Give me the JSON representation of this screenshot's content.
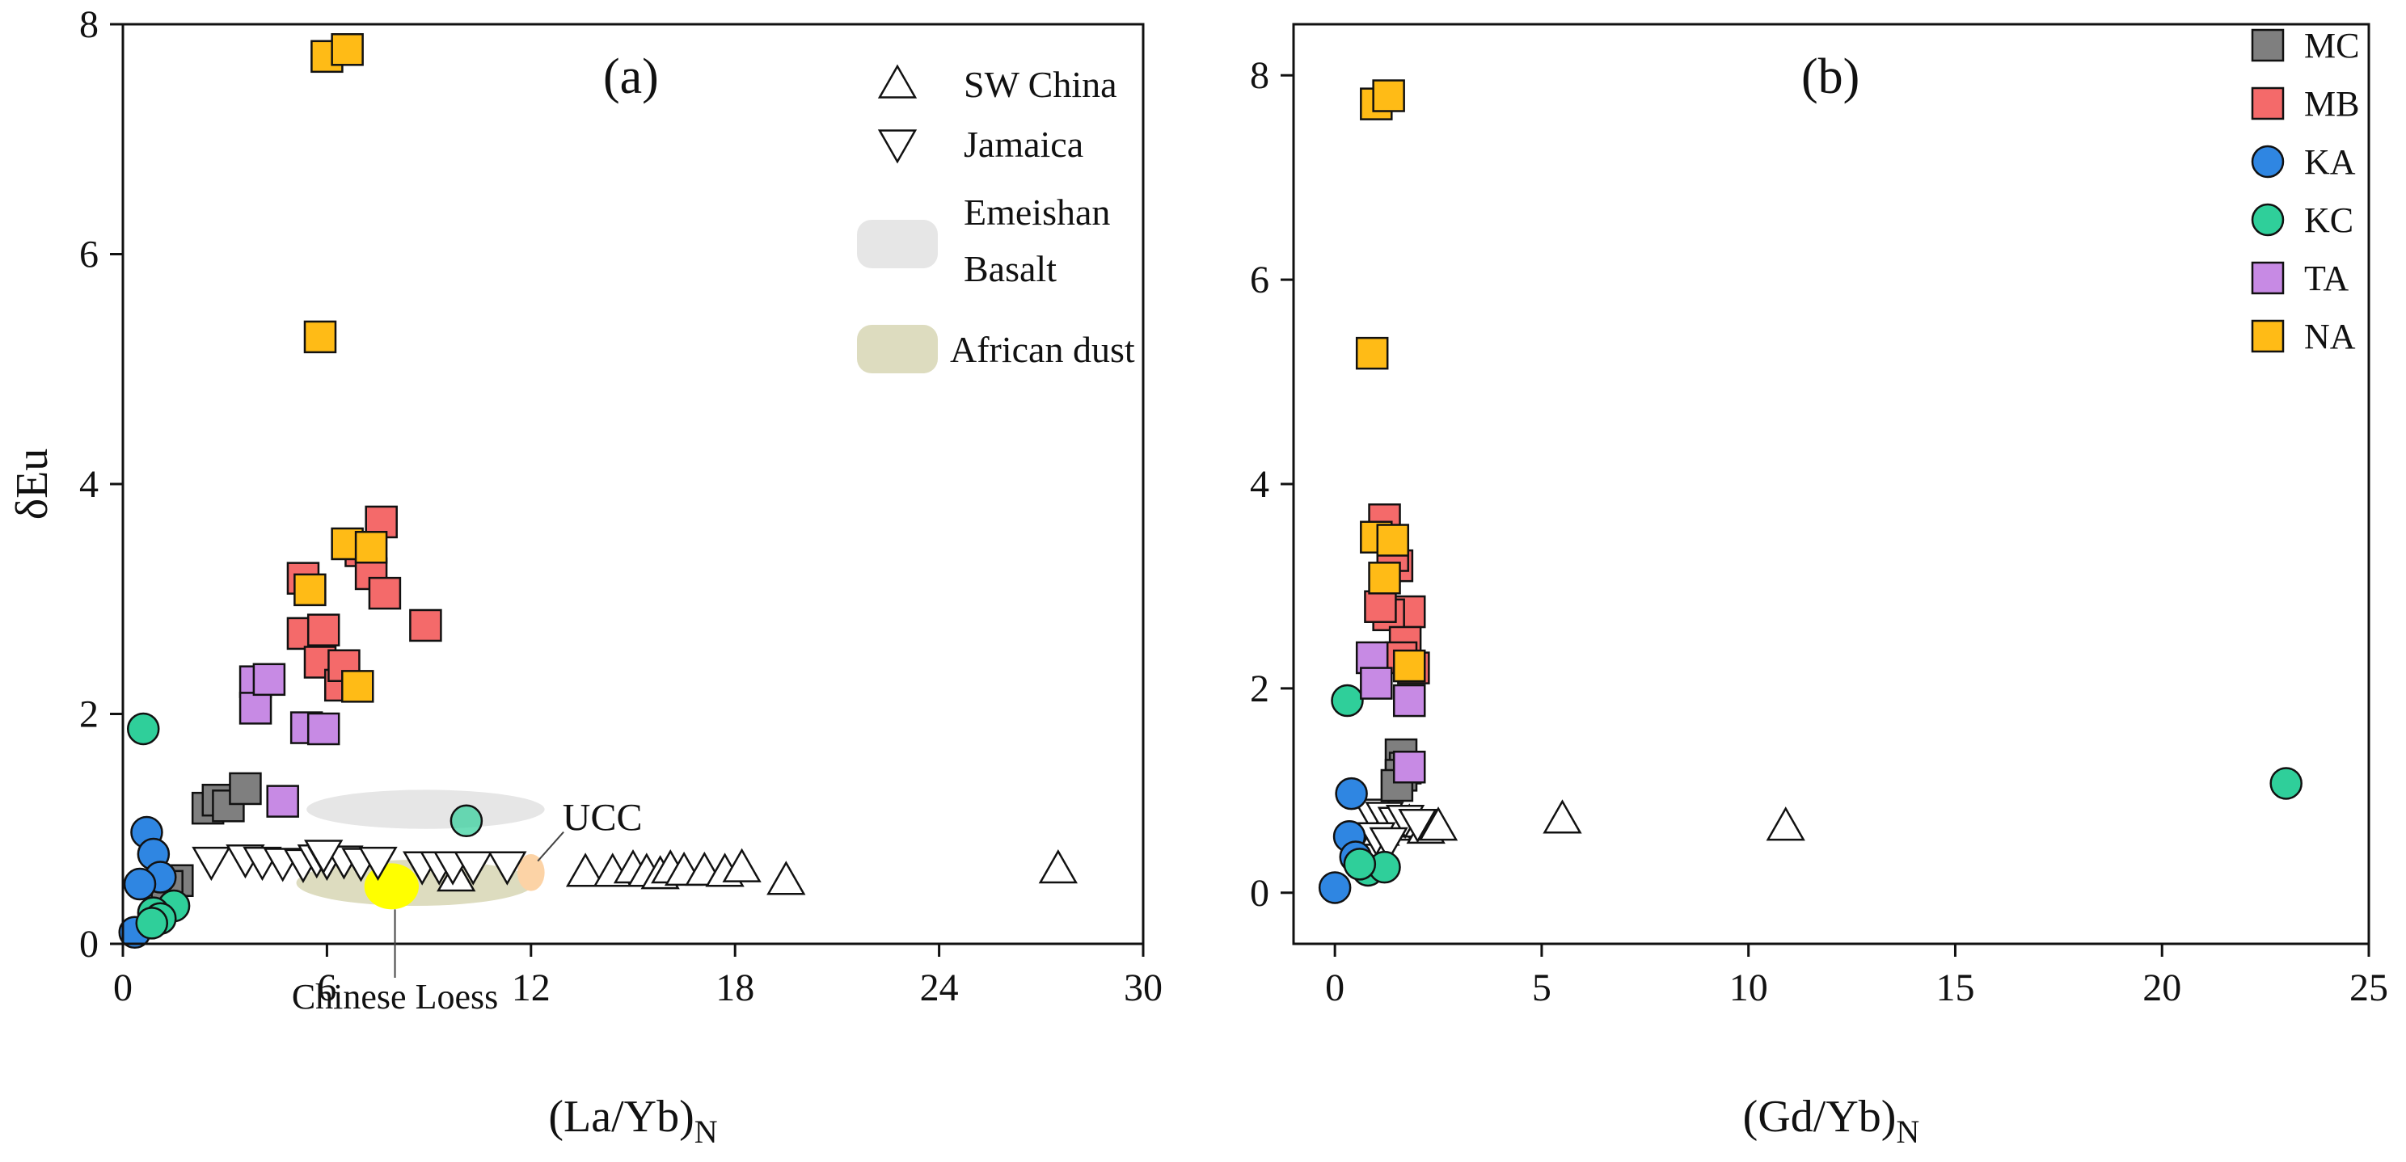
{
  "chart_data": [
    {
      "type": "scatter",
      "panel_label": "(a)",
      "ylabel": "δEu",
      "xlabel": "(La/Yb)",
      "xlabel_sub": "N",
      "xlim": [
        0,
        30
      ],
      "ylim": [
        0,
        8
      ],
      "xticks": [
        0,
        6,
        12,
        18,
        24,
        30
      ],
      "yticks": [
        0,
        2,
        4,
        6,
        8
      ],
      "legend": [
        {
          "name": "SW China",
          "marker": "triangle-up",
          "color": "#ffffff"
        },
        {
          "name": "Jamaica",
          "marker": "triangle-down",
          "color": "#ffffff"
        },
        {
          "name": "Emeishan",
          "name2": "Basalt",
          "marker": "region",
          "color": "#e6e6e6"
        },
        {
          "name": "African dust",
          "marker": "region",
          "color": "#dddcbf"
        }
      ],
      "regions": [
        {
          "name": "Emeishan Basalt",
          "cx": 8.9,
          "cy": 1.17,
          "rx": 3.5,
          "ry": 0.17,
          "color": "#e6e6e6"
        },
        {
          "name": "African dust",
          "cx": 8.6,
          "cy": 0.53,
          "rx": 3.5,
          "ry": 0.2,
          "color": "#dddcbf"
        },
        {
          "name": "Chinese Loess",
          "cx": 7.9,
          "cy": 0.5,
          "rx": 0.8,
          "ry": 0.2,
          "color": "#ffff00"
        },
        {
          "name": "UCC",
          "cx": 12.0,
          "cy": 0.62,
          "rx": 0.4,
          "ry": 0.16,
          "color": "#fcd3a6"
        }
      ],
      "annotations": [
        {
          "text": "UCC",
          "x": 14.1,
          "y": 1.1,
          "target_x": 12.2,
          "target_y": 0.72
        },
        {
          "text": "Chinese Loess",
          "x": 8.0,
          "y": -0.4,
          "target_x": 8.0,
          "target_y": 0.3
        }
      ],
      "series": [
        {
          "name": "SW China",
          "marker": "triangle-up",
          "color": "#ffffff",
          "x": [
            13.6,
            14.4,
            15.0,
            15.4,
            15.8,
            16.1,
            16.5,
            17.1,
            17.7,
            18.2,
            19.5,
            27.5,
            9.8
          ],
          "y": [
            0.62,
            0.62,
            0.65,
            0.62,
            0.6,
            0.65,
            0.63,
            0.63,
            0.62,
            0.66,
            0.55,
            0.65,
            0.58
          ]
        },
        {
          "name": "Jamaica",
          "marker": "triangle-down",
          "color": "#ffffff",
          "x": [
            2.6,
            3.6,
            4.1,
            4.7,
            5.3,
            5.7,
            6.0,
            6.5,
            7.0,
            7.5,
            8.8,
            9.3,
            9.7,
            10.3,
            11.3,
            5.9
          ],
          "y": [
            0.72,
            0.74,
            0.72,
            0.71,
            0.7,
            0.74,
            0.72,
            0.73,
            0.71,
            0.72,
            0.68,
            0.68,
            0.68,
            0.68,
            0.68,
            0.78
          ]
        },
        {
          "name": "MC",
          "marker": "square",
          "color": "#7f7f7f",
          "x": [
            2.5,
            2.8,
            3.1,
            3.6,
            1.6,
            1.3
          ],
          "y": [
            1.18,
            1.25,
            1.2,
            1.35,
            0.55,
            0.5
          ]
        },
        {
          "name": "MB",
          "marker": "square",
          "color": "#f46a6a",
          "x": [
            5.3,
            5.3,
            5.9,
            5.8,
            6.4,
            6.5,
            7.0,
            7.3,
            7.6,
            7.7,
            8.9
          ],
          "y": [
            3.18,
            2.7,
            2.73,
            2.45,
            2.25,
            2.42,
            3.42,
            3.22,
            3.67,
            3.05,
            2.77
          ]
        },
        {
          "name": "KA",
          "marker": "circle",
          "color": "#2f86e2",
          "x": [
            0.7,
            0.9,
            1.1,
            0.5,
            0.35
          ],
          "y": [
            0.97,
            0.78,
            0.58,
            0.52,
            0.1
          ]
        },
        {
          "name": "KC",
          "marker": "circle",
          "color": "#2fcf9a",
          "x": [
            0.6,
            1.5,
            0.9,
            1.1,
            0.85,
            10.1
          ],
          "y": [
            1.87,
            0.33,
            0.27,
            0.22,
            0.18,
            1.07
          ]
        },
        {
          "name": "TA",
          "marker": "square",
          "color": "#c78ae4",
          "x": [
            3.9,
            3.9,
            4.3,
            4.7,
            5.4,
            5.9
          ],
          "y": [
            2.28,
            2.05,
            2.3,
            1.24,
            1.88,
            1.87
          ]
        },
        {
          "name": "NA",
          "marker": "square",
          "color": "#ffbb16",
          "x": [
            6.0,
            6.6,
            5.8,
            5.5,
            6.6,
            7.3,
            6.9
          ],
          "y": [
            7.72,
            7.78,
            5.28,
            3.08,
            3.48,
            3.45,
            2.24
          ]
        }
      ]
    },
    {
      "type": "scatter",
      "panel_label": "(b)",
      "ylabel": "",
      "xlabel": "(Gd/Yb)",
      "xlabel_sub": "N",
      "xlim": [
        -1,
        25
      ],
      "ylim": [
        -0.5,
        8.5
      ],
      "xticks": [
        0,
        5,
        10,
        15,
        20,
        25
      ],
      "yticks": [
        0,
        2,
        4,
        6,
        8
      ],
      "legend": [
        {
          "name": "MC",
          "marker": "square",
          "color": "#7f7f7f"
        },
        {
          "name": "MB",
          "marker": "square",
          "color": "#f46a6a"
        },
        {
          "name": "KA",
          "marker": "circle",
          "color": "#2f86e2"
        },
        {
          "name": "KC",
          "marker": "circle",
          "color": "#2fcf9a"
        },
        {
          "name": "TA",
          "marker": "square",
          "color": "#c78ae4"
        },
        {
          "name": "NA",
          "marker": "square",
          "color": "#ffbb16"
        }
      ],
      "series": [
        {
          "name": "SW China",
          "marker": "triangle-up",
          "color": "#ffffff",
          "x": [
            1.4,
            1.8,
            2.2,
            2.5,
            5.5,
            10.9,
            1.1
          ],
          "y": [
            0.65,
            0.68,
            0.62,
            0.65,
            0.72,
            0.65,
            0.6
          ]
        },
        {
          "name": "Jamaica",
          "marker": "triangle-down",
          "color": "#ffffff",
          "x": [
            0.9,
            1.2,
            1.5,
            1.7,
            2.0,
            1.0,
            1.3
          ],
          "y": [
            0.78,
            0.75,
            0.7,
            0.72,
            0.68,
            0.55,
            0.5
          ]
        },
        {
          "name": "MC",
          "marker": "square",
          "color": "#7f7f7f",
          "x": [
            1.6,
            1.7,
            1.6,
            1.5
          ],
          "y": [
            1.35,
            1.22,
            1.15,
            1.05
          ]
        },
        {
          "name": "MB",
          "marker": "square",
          "color": "#f46a6a",
          "x": [
            1.2,
            1.5,
            1.8,
            1.3,
            1.7,
            1.9,
            1.6,
            1.4,
            1.1
          ],
          "y": [
            3.65,
            3.2,
            2.75,
            2.72,
            2.45,
            2.2,
            2.3,
            3.3,
            2.8
          ]
        },
        {
          "name": "KA",
          "marker": "circle",
          "color": "#2f86e2",
          "x": [
            0.4,
            0.35,
            0.5,
            0.0
          ],
          "y": [
            0.97,
            0.55,
            0.35,
            0.05
          ]
        },
        {
          "name": "KC",
          "marker": "circle",
          "color": "#2fcf9a",
          "x": [
            0.3,
            0.8,
            1.2,
            0.6,
            23.0
          ],
          "y": [
            1.88,
            0.22,
            0.25,
            0.28,
            1.07
          ]
        },
        {
          "name": "TA",
          "marker": "square",
          "color": "#c78ae4",
          "x": [
            0.9,
            1.0,
            1.8,
            1.8
          ],
          "y": [
            2.3,
            2.05,
            1.88,
            1.23
          ]
        },
        {
          "name": "NA",
          "marker": "square",
          "color": "#ffbb16",
          "x": [
            1.0,
            1.3,
            0.9,
            1.0,
            1.4,
            1.2,
            1.8
          ],
          "y": [
            7.72,
            7.8,
            5.28,
            3.48,
            3.45,
            3.08,
            2.22
          ]
        }
      ]
    }
  ]
}
